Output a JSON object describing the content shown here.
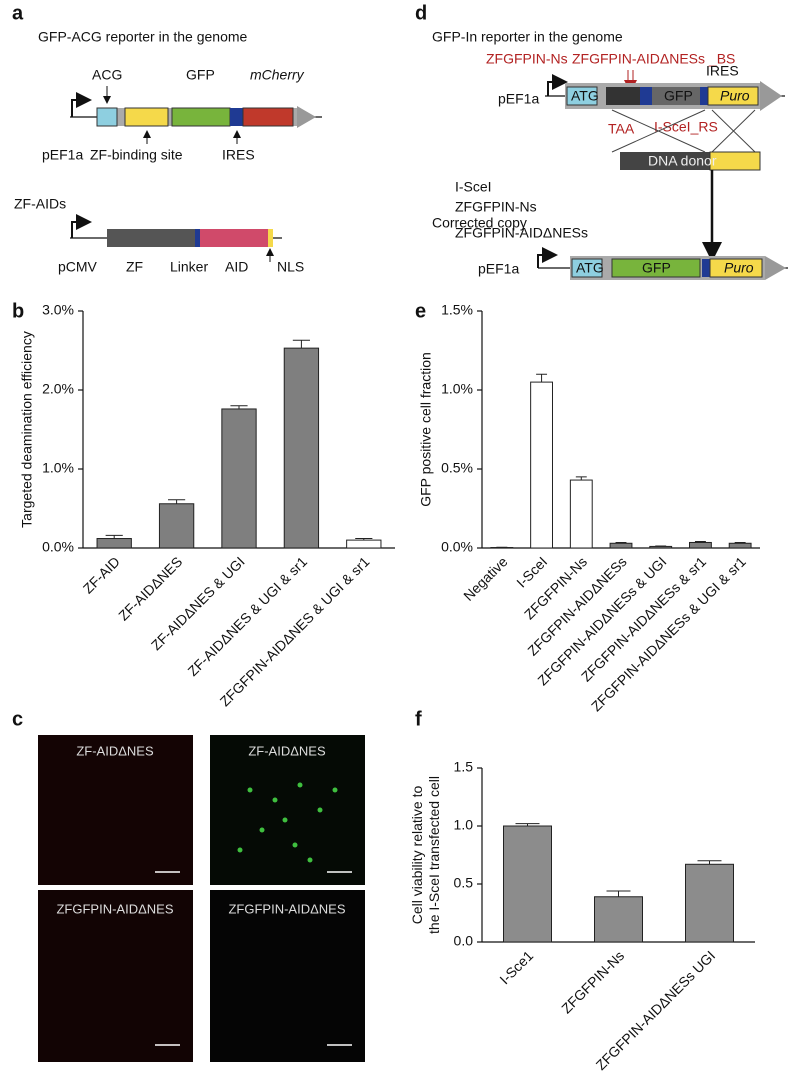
{
  "diagram_a": {
    "panel": "a",
    "title": "GFP-ACG reporter in the genome",
    "acg": "ACG",
    "gfp": "GFP",
    "mcherry": "mCherry",
    "promoter": "pEF1a",
    "zf_site": "ZF-binding site",
    "ires": "IRES",
    "zf_aids": "ZF-AIDs",
    "pcmv": "pCMV",
    "zf": "ZF",
    "linker": "Linker",
    "aid": "AID",
    "nls": "NLS"
  },
  "diagram_d": {
    "panel": "d",
    "title": "GFP-In reporter in the genome",
    "zf_ns": "ZFGFPIN-Ns",
    "zf_aid_bs": "ZFGFPIN-AIDΔNESs _BS",
    "promoter": "pEF1a",
    "atg": "ATG",
    "gfp": "GFP",
    "puro": "Puro",
    "ires": "IRES",
    "taa": "TAA",
    "rs": "I-SceI_RS",
    "donor": "DNA donor",
    "enz1": "I-SceI",
    "enz2": "ZFGFPIN-Ns",
    "enz3": "ZFGFPIN-AIDΔNESs",
    "corrected": "Corrected copy",
    "promoter2": "pEF1a",
    "atg2": "ATG",
    "gfp2": "GFP",
    "puro2": "Puro"
  },
  "images_c": {
    "panel": "c",
    "labels": [
      "ZF-AIDΔNES",
      "ZF-AIDΔNES",
      "ZFGFPIN-AIDΔNES",
      "ZFGFPIN-AIDΔNES"
    ]
  },
  "chart_data": [
    {
      "type": "bar",
      "panel": "b",
      "y_label": [
        "Targeted deamination efficiency"
      ],
      "categories": [
        "ZF-AID",
        "ZF-AIDΔNES",
        "ZF-AIDΔNES & UGI",
        "ZF-AIDΔNES & UGI & sr1",
        "ZFGFPIN-AIDΔNES & UGI & sr1"
      ],
      "values": [
        0.12,
        0.56,
        1.76,
        2.53,
        0.1
      ],
      "errors": [
        0.04,
        0.05,
        0.04,
        0.1,
        0.02
      ],
      "colors": [
        "#7f7f7f",
        "#7f7f7f",
        "#7f7f7f",
        "#7f7f7f",
        "#ffffff"
      ],
      "ylim": [
        0,
        3
      ],
      "yticks": [
        {
          "value": 0,
          "label": "0.0%"
        },
        {
          "value": 1,
          "label": "1.0%"
        },
        {
          "value": 2,
          "label": "2.0%"
        },
        {
          "value": 3,
          "label": "3.0%"
        }
      ]
    },
    {
      "type": "bar",
      "panel": "e",
      "y_label": [
        "GFP positive cell fraction"
      ],
      "categories": [
        "Negative",
        "I-SceI",
        "ZFGFPIN-Ns",
        "ZFGFPIN-AIDΔNESs",
        "ZFGFPIN-AIDΔNESs & UGI",
        "ZFGFPIN-AIDΔNESs & sr1",
        "ZFGFPIN-AIDΔNESs & UGI & sr1"
      ],
      "values": [
        0.003,
        1.05,
        0.43,
        0.03,
        0.01,
        0.035,
        0.03
      ],
      "errors": [
        0.002,
        0.05,
        0.02,
        0.005,
        0.003,
        0.006,
        0.005
      ],
      "colors": [
        "#ffffff",
        "#ffffff",
        "#ffffff",
        "#7f7f7f",
        "#7f7f7f",
        "#7f7f7f",
        "#7f7f7f"
      ],
      "ylim": [
        0,
        1.5
      ],
      "yticks": [
        {
          "value": 0,
          "label": "0.0%"
        },
        {
          "value": 0.5,
          "label": "0.5%"
        },
        {
          "value": 1,
          "label": "1.0%"
        },
        {
          "value": 1.5,
          "label": "1.5%"
        }
      ]
    },
    {
      "type": "bar",
      "panel": "f",
      "y_label": [
        "Cell viability relative to",
        "the I-SceI transfected cell"
      ],
      "categories": [
        "I-Sce1",
        "ZFGFPIN-Ns",
        "ZFGFPIN-AIDΔNESs UGI"
      ],
      "values": [
        1.0,
        0.39,
        0.67
      ],
      "errors": [
        0.02,
        0.05,
        0.03
      ],
      "colors": [
        "#8c8c8c",
        "#8c8c8c",
        "#8c8c8c"
      ],
      "ylim": [
        0,
        1.5
      ],
      "yticks": [
        {
          "value": 0,
          "label": "0.0"
        },
        {
          "value": 0.5,
          "label": "0.5"
        },
        {
          "value": 1,
          "label": "1.0"
        },
        {
          "value": 1.5,
          "label": "1.5"
        }
      ]
    }
  ]
}
